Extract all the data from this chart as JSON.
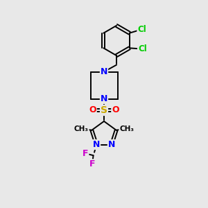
{
  "background_color": "#e8e8e8",
  "bond_color": "#000000",
  "atom_colors": {
    "N": "#0000ff",
    "O": "#ff0000",
    "S": "#ccaa00",
    "Cl": "#00cc00",
    "F": "#cc00cc",
    "C": "#000000"
  }
}
